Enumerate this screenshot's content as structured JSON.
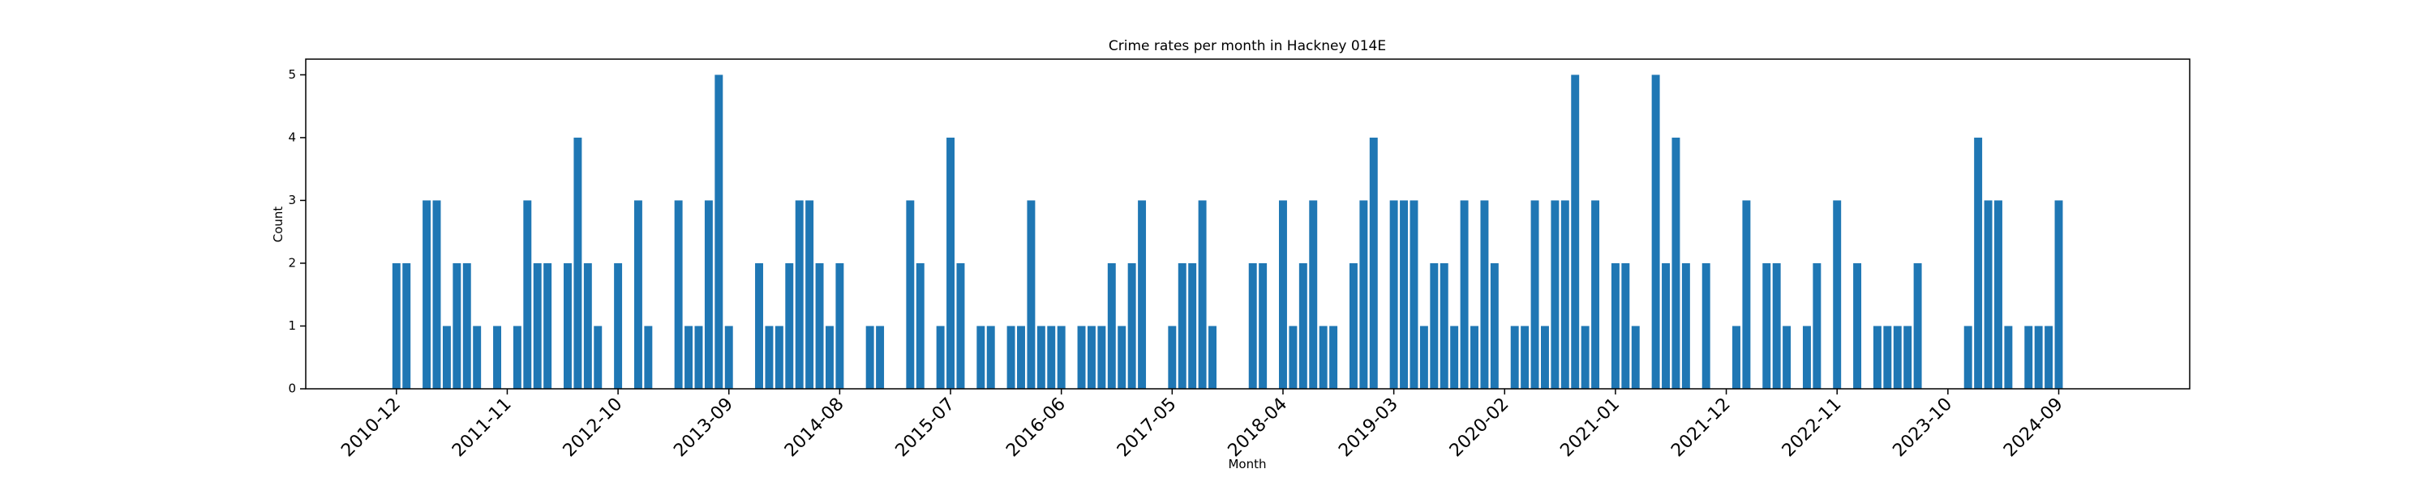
{
  "chart_data": {
    "type": "bar",
    "title": "Crime rates per month in Hackney 014E",
    "xlabel": "Month",
    "ylabel": "Count",
    "color": "#1f77b4",
    "x": [
      "2010-12",
      "2011-01",
      "2011-03",
      "2011-04",
      "2011-05",
      "2011-06",
      "2011-07",
      "2011-08",
      "2011-10",
      "2011-12",
      "2012-01",
      "2012-02",
      "2012-03",
      "2012-05",
      "2012-06",
      "2012-07",
      "2012-08",
      "2012-10",
      "2012-12",
      "2013-01",
      "2013-04",
      "2013-05",
      "2013-06",
      "2013-07",
      "2013-08",
      "2013-09",
      "2013-12",
      "2014-01",
      "2014-02",
      "2014-03",
      "2014-04",
      "2014-05",
      "2014-06",
      "2014-07",
      "2014-08",
      "2014-11",
      "2014-12",
      "2015-03",
      "2015-04",
      "2015-06",
      "2015-07",
      "2015-08",
      "2015-10",
      "2015-11",
      "2016-01",
      "2016-02",
      "2016-03",
      "2016-04",
      "2016-05",
      "2016-06",
      "2016-08",
      "2016-09",
      "2016-10",
      "2016-11",
      "2016-12",
      "2017-01",
      "2017-02",
      "2017-05",
      "2017-06",
      "2017-07",
      "2017-08",
      "2017-09",
      "2018-01",
      "2018-02",
      "2018-04",
      "2018-05",
      "2018-06",
      "2018-07",
      "2018-08",
      "2018-09",
      "2018-11",
      "2018-12",
      "2019-01",
      "2019-03",
      "2019-04",
      "2019-05",
      "2019-06",
      "2019-07",
      "2019-08",
      "2019-09",
      "2019-10",
      "2019-11",
      "2019-12",
      "2020-01",
      "2020-03",
      "2020-04",
      "2020-05",
      "2020-06",
      "2020-07",
      "2020-08",
      "2020-09",
      "2020-10",
      "2020-11",
      "2021-01",
      "2021-02",
      "2021-03",
      "2021-05",
      "2021-06",
      "2021-07",
      "2021-08",
      "2021-10",
      "2022-01",
      "2022-02",
      "2022-04",
      "2022-05",
      "2022-06",
      "2022-08",
      "2022-09",
      "2022-11",
      "2023-01",
      "2023-03",
      "2023-04",
      "2023-05",
      "2023-06",
      "2023-07",
      "2023-12",
      "2024-01",
      "2024-02",
      "2024-03",
      "2024-04",
      "2024-06",
      "2024-07",
      "2024-08",
      "2024-09"
    ],
    "values": [
      2,
      2,
      3,
      3,
      1,
      2,
      2,
      1,
      1,
      1,
      3,
      2,
      2,
      2,
      4,
      2,
      1,
      2,
      3,
      1,
      3,
      1,
      1,
      3,
      5,
      1,
      2,
      1,
      1,
      2,
      3,
      3,
      2,
      1,
      2,
      1,
      1,
      3,
      2,
      1,
      4,
      2,
      1,
      1,
      1,
      1,
      3,
      1,
      1,
      1,
      1,
      1,
      1,
      2,
      1,
      2,
      3,
      1,
      2,
      2,
      3,
      1,
      2,
      2,
      3,
      1,
      2,
      3,
      1,
      1,
      2,
      3,
      4,
      3,
      3,
      3,
      1,
      2,
      2,
      1,
      3,
      1,
      3,
      2,
      1,
      1,
      3,
      1,
      3,
      3,
      5,
      1,
      3,
      2,
      2,
      1,
      5,
      2,
      4,
      2,
      2,
      1,
      3,
      2,
      2,
      1,
      1,
      2,
      3,
      2,
      1,
      1,
      1,
      1,
      2,
      1,
      4,
      3,
      3,
      1,
      1,
      1,
      1,
      3
    ],
    "xlim": [
      "2010-03",
      "2025-10"
    ],
    "xticks": [
      "2010-12",
      "2011-11",
      "2012-10",
      "2013-09",
      "2014-08",
      "2015-07",
      "2016-06",
      "2017-05",
      "2018-04",
      "2019-03",
      "2020-02",
      "2021-01",
      "2021-12",
      "2022-11",
      "2023-10",
      "2024-09"
    ],
    "ylim": [
      0,
      5.25
    ],
    "yticks": [
      0,
      1,
      2,
      3,
      4,
      5
    ]
  }
}
